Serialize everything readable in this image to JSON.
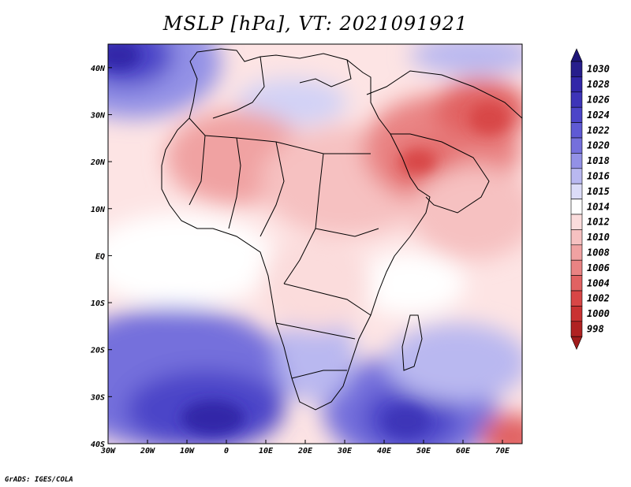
{
  "title": "MSLP [hPa], VT: 2021091921",
  "credit": "GrADS: IGES/COLA",
  "map": {
    "lon_range": [
      -30,
      75
    ],
    "lat_range": [
      -40,
      45
    ],
    "x_ticks": [
      {
        "lon": -30,
        "label": "30W"
      },
      {
        "lon": -20,
        "label": "20W"
      },
      {
        "lon": -10,
        "label": "10W"
      },
      {
        "lon": 0,
        "label": "0"
      },
      {
        "lon": 10,
        "label": "10E"
      },
      {
        "lon": 20,
        "label": "20E"
      },
      {
        "lon": 30,
        "label": "30E"
      },
      {
        "lon": 40,
        "label": "40E"
      },
      {
        "lon": 50,
        "label": "50E"
      },
      {
        "lon": 60,
        "label": "60E"
      },
      {
        "lon": 70,
        "label": "70E"
      }
    ],
    "y_ticks": [
      {
        "lat": 40,
        "label": "40N"
      },
      {
        "lat": 30,
        "label": "30N"
      },
      {
        "lat": 20,
        "label": "20N"
      },
      {
        "lat": 10,
        "label": "10N"
      },
      {
        "lat": 0,
        "label": "EQ"
      },
      {
        "lat": -10,
        "label": "10S"
      },
      {
        "lat": -20,
        "label": "20S"
      },
      {
        "lat": -30,
        "label": "30S"
      },
      {
        "lat": -40,
        "label": "40S"
      }
    ]
  },
  "colorbar": {
    "levels": [
      {
        "label": "1030",
        "color": "#271e8c"
      },
      {
        "label": "1028",
        "color": "#3227a8"
      },
      {
        "label": "1026",
        "color": "#3d34b8"
      },
      {
        "label": "1024",
        "color": "#4c45c8"
      },
      {
        "label": "1022",
        "color": "#5f5ad4"
      },
      {
        "label": "1020",
        "color": "#7570dc"
      },
      {
        "label": "1018",
        "color": "#9391e6"
      },
      {
        "label": "1016",
        "color": "#b9b8f0"
      },
      {
        "label": "1015",
        "color": "#dcdcf8"
      },
      {
        "label": "1014",
        "color": "#ffffff"
      },
      {
        "label": "1012",
        "color": "#fbdcdc"
      },
      {
        "label": "1010",
        "color": "#f6c1c1"
      },
      {
        "label": "1008",
        "color": "#f0a2a2"
      },
      {
        "label": "1006",
        "color": "#e98383"
      },
      {
        "label": "1004",
        "color": "#e16262"
      },
      {
        "label": "1002",
        "color": "#d84646"
      },
      {
        "label": "1000",
        "color": "#c93232"
      },
      {
        "label": "998",
        "color": "#b02222"
      }
    ],
    "top_cap_color": "#1e1678",
    "bottom_cap_color": "#a01c1c"
  }
}
